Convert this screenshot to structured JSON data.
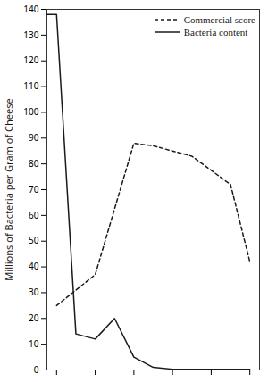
{
  "chart_data": {
    "type": "line",
    "ylabel": "Millions of Bacteria per Gram of Cheese",
    "series": [
      {
        "name": "Commercial score",
        "color": "#1a1a1a",
        "line_style": "dashed",
        "x": [
          10,
          30,
          50,
          60,
          80,
          100,
          110
        ],
        "values": [
          25,
          37,
          88,
          87,
          83,
          72,
          42
        ]
      },
      {
        "name": "Bacteria content",
        "color": "#1a1a1a",
        "line_style": "solid",
        "x": [
          5,
          10,
          20,
          30,
          40,
          50,
          60,
          70,
          80,
          90,
          100,
          110
        ],
        "values": [
          138,
          138,
          14,
          12,
          20,
          5,
          1,
          0.3,
          0.3,
          0.3,
          0.3,
          0.3
        ]
      }
    ],
    "xlim": [
      5,
      115
    ],
    "xticks": [
      10,
      30,
      50,
      70,
      90,
      110
    ],
    "ylim": [
      0,
      140
    ],
    "yticks": [
      0,
      10,
      20,
      30,
      40,
      50,
      60,
      70,
      80,
      90,
      100,
      110,
      120,
      130,
      140
    ],
    "tick_labels": "y",
    "legend": "upper right",
    "grid": false
  }
}
